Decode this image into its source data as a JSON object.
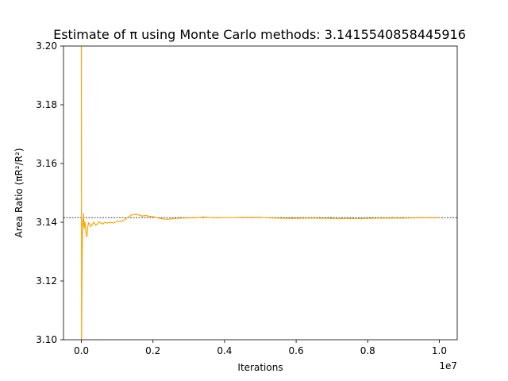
{
  "chart_data": {
    "type": "line",
    "title": "Estimate of π using Monte Carlo methods: 3.1415540858445916",
    "xlabel": "Iterations",
    "ylabel": "Area Ratio (πR²/R²)",
    "x_offset_label": "1e7",
    "xlim": [
      -500000,
      10500000
    ],
    "ylim": [
      3.1,
      3.2
    ],
    "x_tick_values": [
      0,
      2000000,
      4000000,
      6000000,
      8000000,
      10000000
    ],
    "x_tick_labels": [
      "0.0",
      "0.2",
      "0.4",
      "0.6",
      "0.8",
      "1.0"
    ],
    "y_tick_values": [
      3.1,
      3.12,
      3.14,
      3.16,
      3.18,
      3.2
    ],
    "y_tick_labels": [
      "3.10",
      "3.12",
      "3.14",
      "3.16",
      "3.18",
      "3.20"
    ],
    "reference_line": {
      "y": 3.14159,
      "style": "dashed",
      "color": "#000000"
    },
    "series": [
      {
        "color": "#ffa500",
        "x": [
          0,
          5000,
          10000,
          20000,
          30000,
          40000,
          50000,
          60000,
          70000,
          80000,
          100000,
          120000,
          150000,
          180000,
          200000,
          230000,
          260000,
          300000,
          350000,
          400000,
          450000,
          500000,
          550000,
          600000,
          650000,
          700000,
          750000,
          800000,
          850000,
          900000,
          950000,
          1000000,
          1100000,
          1200000,
          1300000,
          1400000,
          1500000,
          1600000,
          1700000,
          1800000,
          1900000,
          2000000,
          2100000,
          2200000,
          2300000,
          2400000,
          2500000,
          2600000,
          2800000,
          3000000,
          3200000,
          3400000,
          3600000,
          3800000,
          4000000,
          4200000,
          4500000,
          4800000,
          5000000,
          5200000,
          5500000,
          5800000,
          6000000,
          6200000,
          6500000,
          7000000,
          7200000,
          7500000,
          7800000,
          8000000,
          8300000,
          8600000,
          9000000,
          9300000,
          9600000,
          10000000
        ],
        "y": [
          3.2,
          3.095,
          3.11,
          3.128,
          3.137,
          3.141,
          3.139,
          3.143,
          3.14,
          3.138,
          3.14,
          3.137,
          3.135,
          3.1385,
          3.1398,
          3.1395,
          3.1385,
          3.1392,
          3.14,
          3.139,
          3.1395,
          3.1402,
          3.1396,
          3.1394,
          3.14,
          3.1397,
          3.1399,
          3.1398,
          3.14,
          3.1397,
          3.1401,
          3.1404,
          3.1403,
          3.1408,
          3.1417,
          3.1425,
          3.1427,
          3.1425,
          3.1421,
          3.1423,
          3.142,
          3.1419,
          3.1416,
          3.1413,
          3.1411,
          3.141,
          3.1411,
          3.1413,
          3.1414,
          3.1415,
          3.1415,
          3.1418,
          3.1416,
          3.1415,
          3.1416,
          3.1416,
          3.1417,
          3.1417,
          3.1417,
          3.1415,
          3.1414,
          3.1413,
          3.1413,
          3.1414,
          3.1414,
          3.1413,
          3.1412,
          3.1413,
          3.1412,
          3.1413,
          3.1414,
          3.1414,
          3.1414,
          3.1415,
          3.1415,
          3.14155
        ]
      }
    ]
  }
}
